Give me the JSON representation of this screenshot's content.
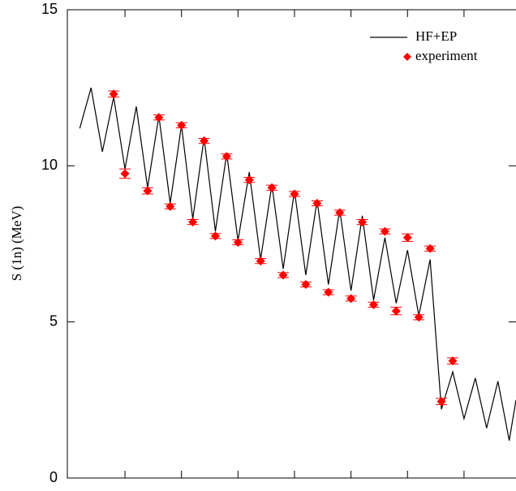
{
  "chart_data": {
    "type": "line",
    "y_label": "S (1n) (MeV)",
    "ylim": [
      0,
      15
    ],
    "yticks": [
      0,
      5,
      10,
      15
    ],
    "xlim": [
      -0.1,
      39.6
    ],
    "xticks": [
      5,
      10,
      15,
      20,
      25,
      30,
      35
    ],
    "legend": "top-right",
    "series": [
      {
        "name": "HF+EP",
        "color": "#000000",
        "style": "line",
        "x": [
          1,
          2,
          3,
          4,
          5,
          6,
          7,
          8,
          9,
          10,
          11,
          12,
          13,
          14,
          15,
          16,
          17,
          18,
          19,
          20,
          21,
          22,
          23,
          24,
          25,
          26,
          27,
          28,
          29,
          30,
          31,
          32,
          33,
          34,
          35,
          36,
          37,
          38,
          39,
          39.6
        ],
        "values": [
          11.2,
          12.5,
          10.45,
          12.2,
          9.9,
          11.9,
          9.3,
          11.6,
          8.8,
          11.3,
          8.3,
          10.9,
          7.9,
          10.4,
          7.6,
          9.8,
          7.0,
          9.4,
          6.7,
          9.2,
          6.5,
          8.9,
          6.2,
          8.6,
          6.0,
          8.4,
          5.7,
          7.7,
          5.6,
          7.3,
          5.2,
          7.0,
          2.2,
          3.4,
          1.9,
          3.2,
          1.6,
          3.1,
          1.2,
          2.5
        ]
      },
      {
        "name": "experiment",
        "color": "#ff0000",
        "style": "points",
        "x": [
          4,
          5,
          7,
          8,
          9,
          10,
          11,
          12,
          13,
          14,
          15,
          16,
          17,
          18,
          19,
          20,
          21,
          22,
          23,
          24,
          25,
          26,
          27,
          28,
          29,
          30,
          31,
          32,
          33,
          34
        ],
        "values": [
          12.3,
          9.75,
          9.2,
          11.55,
          8.7,
          11.3,
          8.2,
          10.8,
          7.75,
          10.3,
          7.55,
          9.55,
          6.95,
          9.3,
          6.5,
          9.1,
          6.2,
          8.8,
          5.95,
          8.5,
          5.75,
          8.2,
          5.55,
          7.9,
          5.35,
          7.7,
          5.15,
          7.35,
          2.45,
          3.75
        ],
        "errors": [
          0.1,
          0.15,
          0.1,
          0.08,
          0.08,
          0.08,
          0.08,
          0.08,
          0.08,
          0.08,
          0.08,
          0.08,
          0.08,
          0.08,
          0.08,
          0.08,
          0.08,
          0.08,
          0.08,
          0.08,
          0.08,
          0.08,
          0.08,
          0.08,
          0.12,
          0.12,
          0.08,
          0.08,
          0.1,
          0.1
        ]
      }
    ]
  }
}
